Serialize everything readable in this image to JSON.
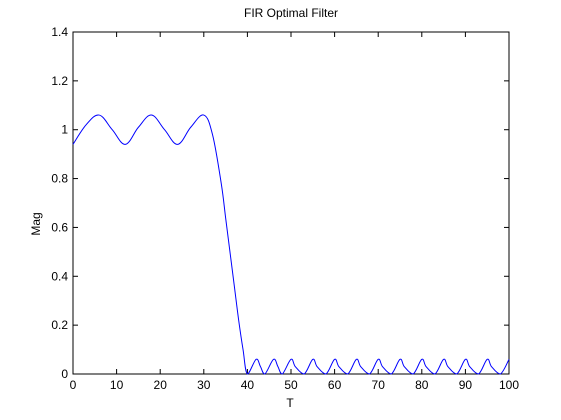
{
  "chart_data": {
    "type": "line",
    "title": "FIR Optimal Filter",
    "xlabel": "T",
    "ylabel": "Mag",
    "xlim": [
      0,
      100
    ],
    "ylim": [
      0,
      1.4
    ],
    "xticks": [
      0,
      10,
      20,
      30,
      40,
      50,
      60,
      70,
      80,
      90,
      100
    ],
    "yticks": [
      0,
      0.2,
      0.4,
      0.6,
      0.8,
      1,
      1.2,
      1.4
    ],
    "xtick_labels": [
      "0",
      "10",
      "20",
      "30",
      "40",
      "50",
      "60",
      "70",
      "80",
      "90",
      "100"
    ],
    "ytick_labels": [
      "0",
      "0.2",
      "0.4",
      "0.6",
      "0.8",
      "1",
      "1.2",
      "1.4"
    ],
    "grid": false,
    "line_color": "#0000ff",
    "series": [
      {
        "x": [
          0,
          3,
          6,
          9,
          12,
          15,
          18,
          21,
          24,
          27,
          30,
          32,
          34,
          35,
          36,
          37,
          38,
          39,
          40,
          42,
          43,
          44,
          46,
          47,
          48,
          50,
          51,
          53,
          55,
          56,
          58,
          60,
          61,
          63,
          65,
          66,
          68,
          70,
          71,
          73,
          75,
          76,
          78,
          80,
          81,
          83,
          85,
          86,
          88,
          90,
          91,
          93,
          95,
          96,
          98,
          100
        ],
        "y": [
          0.94,
          1.02,
          1.06,
          1.0,
          0.94,
          1.01,
          1.06,
          1.0,
          0.94,
          1.01,
          1.06,
          0.98,
          0.78,
          0.64,
          0.5,
          0.36,
          0.22,
          0.1,
          0.0,
          0.06,
          0.03,
          0.0,
          0.06,
          0.03,
          0.0,
          0.06,
          0.03,
          0.0,
          0.06,
          0.03,
          0.0,
          0.06,
          0.03,
          0.0,
          0.06,
          0.03,
          0.0,
          0.06,
          0.03,
          0.0,
          0.06,
          0.03,
          0.0,
          0.06,
          0.03,
          0.0,
          0.06,
          0.03,
          0.0,
          0.06,
          0.03,
          0.0,
          0.06,
          0.03,
          0.0,
          0.06
        ]
      }
    ]
  }
}
